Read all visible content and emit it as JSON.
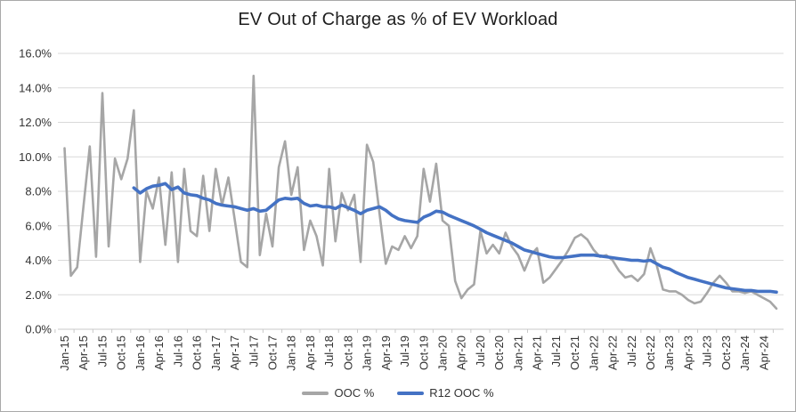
{
  "title": "EV Out of Charge as % of EV Workload",
  "legend": [
    {
      "label": "OOC %",
      "color": "#a6a6a6"
    },
    {
      "label": "R12 OOC %",
      "color": "#4472c4"
    }
  ],
  "colors": {
    "gridline": "#d9d9d9",
    "axis_line": "#c9c9c9",
    "tick_label": "#333333",
    "title_text": "#1f1f1f",
    "ooc_series": "#a6a6a6",
    "r12_series": "#4472c4",
    "background": "#ffffff"
  },
  "chart_data": {
    "type": "line",
    "title": "EV Out of Charge as % of EV Workload",
    "xlabel": "",
    "ylabel": "",
    "grid": true,
    "legend_position": "bottom",
    "ylim_percent": [
      0,
      16
    ],
    "y_tick_labels": [
      "0.0%",
      "2.0%",
      "4.0%",
      "6.0%",
      "8.0%",
      "10.0%",
      "12.0%",
      "14.0%",
      "16.0%"
    ],
    "x_first_month": "Jan-15",
    "x_last_month": "Jun-24",
    "x_interval": "monthly",
    "x_tick_labels": [
      "Jan-15",
      "Apr-15",
      "Jul-15",
      "Oct-15",
      "Jan-16",
      "Apr-16",
      "Jul-16",
      "Oct-16",
      "Jan-17",
      "Apr-17",
      "Jul-17",
      "Oct-17",
      "Jan-18",
      "Apr-18",
      "Jul-18",
      "Oct-18",
      "Jan-19",
      "Apr-19",
      "Jul-19",
      "Oct-19",
      "Jan-20",
      "Apr-20",
      "Jul-20",
      "Oct-20",
      "Jan-21",
      "Apr-21",
      "Jul-21",
      "Oct-21",
      "Jan-22",
      "Apr-22",
      "Jul-22",
      "Oct-22",
      "Jan-23",
      "Apr-23",
      "Jul-23",
      "Oct-23",
      "Jan-24",
      "Apr-24"
    ],
    "series": [
      {
        "name": "OOC %",
        "color": "#a6a6a6",
        "stroke_width": 2.6,
        "values_percent": [
          10.5,
          3.1,
          3.6,
          7.1,
          10.6,
          4.2,
          13.7,
          4.8,
          9.9,
          8.7,
          9.9,
          12.7,
          3.9,
          8.0,
          7.0,
          8.8,
          4.9,
          9.1,
          3.9,
          9.3,
          5.7,
          5.4,
          8.9,
          5.7,
          9.3,
          7.2,
          8.8,
          6.4,
          3.9,
          3.6,
          14.7,
          4.3,
          6.7,
          4.8,
          9.4,
          10.9,
          7.8,
          9.4,
          4.6,
          6.3,
          5.4,
          3.7,
          9.3,
          5.1,
          7.9,
          6.9,
          7.8,
          3.9,
          10.7,
          9.7,
          6.7,
          3.8,
          4.8,
          4.6,
          5.4,
          4.7,
          5.4,
          9.3,
          7.4,
          9.6,
          6.3,
          6.0,
          2.8,
          1.8,
          2.3,
          2.6,
          5.7,
          4.4,
          4.9,
          4.4,
          5.6,
          4.8,
          4.3,
          3.4,
          4.3,
          4.7,
          2.7,
          3.0,
          3.5,
          4.0,
          4.6,
          5.3,
          5.5,
          5.2,
          4.6,
          4.2,
          4.3,
          4.0,
          3.4,
          3.0,
          3.1,
          2.8,
          3.2,
          4.7,
          3.7,
          2.3,
          2.2,
          2.2,
          2.0,
          1.7,
          1.5,
          1.6,
          2.1,
          2.7,
          3.1,
          2.7,
          2.2,
          2.2,
          2.1,
          2.2,
          2.0,
          1.8,
          1.6,
          1.2
        ]
      },
      {
        "name": "R12 OOC %",
        "color": "#4472c4",
        "stroke_width": 3.6,
        "values_percent": [
          null,
          null,
          null,
          null,
          null,
          null,
          null,
          null,
          null,
          null,
          null,
          8.2,
          7.9,
          8.15,
          8.3,
          8.35,
          8.45,
          8.1,
          8.25,
          7.9,
          7.8,
          7.75,
          7.6,
          7.5,
          7.3,
          7.2,
          7.15,
          7.1,
          7.0,
          6.9,
          7.0,
          6.85,
          6.9,
          7.2,
          7.5,
          7.6,
          7.55,
          7.6,
          7.3,
          7.15,
          7.2,
          7.1,
          7.1,
          7.0,
          7.2,
          7.05,
          6.9,
          6.7,
          6.9,
          7.0,
          7.1,
          6.9,
          6.6,
          6.4,
          6.3,
          6.25,
          6.2,
          6.5,
          6.65,
          6.85,
          6.8,
          6.6,
          6.45,
          6.3,
          6.15,
          6.0,
          5.8,
          5.6,
          5.45,
          5.3,
          5.15,
          5.0,
          4.8,
          4.6,
          4.5,
          4.4,
          4.3,
          4.2,
          4.15,
          4.15,
          4.2,
          4.25,
          4.3,
          4.3,
          4.3,
          4.25,
          4.2,
          4.15,
          4.1,
          4.05,
          4.0,
          4.0,
          3.95,
          4.0,
          3.8,
          3.6,
          3.5,
          3.3,
          3.15,
          3.0,
          2.9,
          2.8,
          2.7,
          2.6,
          2.5,
          2.4,
          2.35,
          2.3,
          2.25,
          2.25,
          2.2,
          2.2,
          2.2,
          2.15
        ]
      }
    ]
  }
}
